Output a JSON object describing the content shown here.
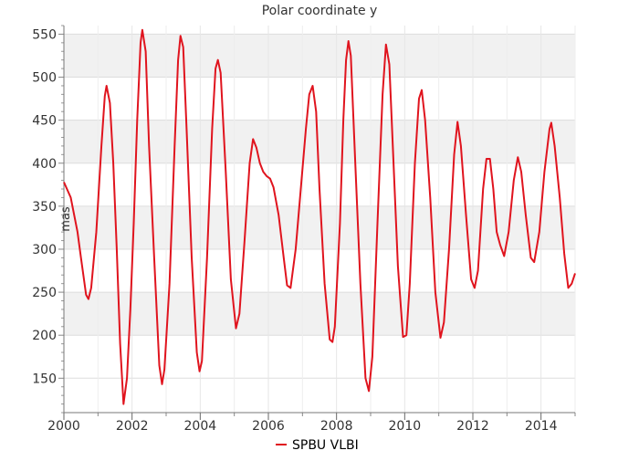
{
  "chart_data": {
    "type": "line",
    "title": "Polar coordinate y",
    "xlabel": "",
    "ylabel": "mas",
    "xlim": [
      2000.0,
      2015.0
    ],
    "ylim": [
      110,
      560
    ],
    "x_ticks": [
      "2000",
      "2002",
      "2004",
      "2006",
      "2008",
      "2010",
      "2012",
      "2014"
    ],
    "y_ticks": [
      "150",
      "200",
      "250",
      "300",
      "350",
      "400",
      "450",
      "500",
      "550"
    ],
    "grid": true,
    "legend_position": "bottom-center",
    "series": [
      {
        "name": "SPBU VLBI",
        "color": "#e0141e",
        "points": [
          [
            2000.0,
            378
          ],
          [
            2000.2,
            360
          ],
          [
            2000.4,
            320
          ],
          [
            2000.5,
            290
          ],
          [
            2000.65,
            247
          ],
          [
            2000.72,
            242
          ],
          [
            2000.8,
            255
          ],
          [
            2000.95,
            320
          ],
          [
            2001.1,
            420
          ],
          [
            2001.2,
            478
          ],
          [
            2001.25,
            490
          ],
          [
            2001.35,
            470
          ],
          [
            2001.45,
            400
          ],
          [
            2001.55,
            300
          ],
          [
            2001.65,
            190
          ],
          [
            2001.75,
            120
          ],
          [
            2001.85,
            150
          ],
          [
            2001.95,
            230
          ],
          [
            2002.05,
            330
          ],
          [
            2002.15,
            450
          ],
          [
            2002.25,
            540
          ],
          [
            2002.3,
            555
          ],
          [
            2002.4,
            530
          ],
          [
            2002.5,
            420
          ],
          [
            2002.65,
            290
          ],
          [
            2002.8,
            165
          ],
          [
            2002.88,
            143
          ],
          [
            2002.95,
            160
          ],
          [
            2003.1,
            260
          ],
          [
            2003.25,
            420
          ],
          [
            2003.35,
            520
          ],
          [
            2003.42,
            548
          ],
          [
            2003.5,
            535
          ],
          [
            2003.6,
            440
          ],
          [
            2003.75,
            290
          ],
          [
            2003.9,
            180
          ],
          [
            2003.98,
            158
          ],
          [
            2004.05,
            170
          ],
          [
            2004.2,
            290
          ],
          [
            2004.35,
            440
          ],
          [
            2004.45,
            510
          ],
          [
            2004.52,
            520
          ],
          [
            2004.6,
            505
          ],
          [
            2004.75,
            390
          ],
          [
            2004.9,
            265
          ],
          [
            2005.05,
            208
          ],
          [
            2005.15,
            225
          ],
          [
            2005.3,
            310
          ],
          [
            2005.45,
            400
          ],
          [
            2005.55,
            428
          ],
          [
            2005.65,
            418
          ],
          [
            2005.75,
            400
          ],
          [
            2005.85,
            390
          ],
          [
            2005.95,
            385
          ],
          [
            2006.05,
            382
          ],
          [
            2006.15,
            372
          ],
          [
            2006.3,
            340
          ],
          [
            2006.45,
            290
          ],
          [
            2006.55,
            258
          ],
          [
            2006.65,
            255
          ],
          [
            2006.8,
            300
          ],
          [
            2006.95,
            370
          ],
          [
            2007.1,
            440
          ],
          [
            2007.2,
            480
          ],
          [
            2007.3,
            490
          ],
          [
            2007.4,
            460
          ],
          [
            2007.5,
            370
          ],
          [
            2007.65,
            260
          ],
          [
            2007.8,
            195
          ],
          [
            2007.88,
            192
          ],
          [
            2007.95,
            210
          ],
          [
            2008.1,
            330
          ],
          [
            2008.2,
            450
          ],
          [
            2008.28,
            520
          ],
          [
            2008.35,
            542
          ],
          [
            2008.42,
            525
          ],
          [
            2008.55,
            400
          ],
          [
            2008.7,
            260
          ],
          [
            2008.85,
            150
          ],
          [
            2008.95,
            135
          ],
          [
            2009.05,
            175
          ],
          [
            2009.2,
            330
          ],
          [
            2009.35,
            480
          ],
          [
            2009.45,
            538
          ],
          [
            2009.55,
            515
          ],
          [
            2009.65,
            420
          ],
          [
            2009.8,
            280
          ],
          [
            2009.95,
            198
          ],
          [
            2010.05,
            200
          ],
          [
            2010.15,
            260
          ],
          [
            2010.3,
            400
          ],
          [
            2010.42,
            475
          ],
          [
            2010.5,
            485
          ],
          [
            2010.6,
            450
          ],
          [
            2010.75,
            360
          ],
          [
            2010.9,
            250
          ],
          [
            2011.05,
            197
          ],
          [
            2011.15,
            215
          ],
          [
            2011.3,
            300
          ],
          [
            2011.45,
            410
          ],
          [
            2011.55,
            448
          ],
          [
            2011.65,
            420
          ],
          [
            2011.8,
            340
          ],
          [
            2011.95,
            265
          ],
          [
            2012.05,
            255
          ],
          [
            2012.15,
            275
          ],
          [
            2012.3,
            370
          ],
          [
            2012.4,
            405
          ],
          [
            2012.5,
            405
          ],
          [
            2012.6,
            370
          ],
          [
            2012.7,
            320
          ],
          [
            2012.8,
            305
          ],
          [
            2012.92,
            292
          ],
          [
            2013.05,
            320
          ],
          [
            2013.2,
            380
          ],
          [
            2013.32,
            407
          ],
          [
            2013.42,
            390
          ],
          [
            2013.55,
            340
          ],
          [
            2013.7,
            290
          ],
          [
            2013.8,
            285
          ],
          [
            2013.95,
            320
          ],
          [
            2014.1,
            390
          ],
          [
            2014.25,
            440
          ],
          [
            2014.3,
            447
          ],
          [
            2014.4,
            420
          ],
          [
            2014.55,
            360
          ],
          [
            2014.68,
            295
          ],
          [
            2014.8,
            255
          ],
          [
            2014.9,
            260
          ],
          [
            2015.0,
            272
          ]
        ]
      }
    ]
  }
}
